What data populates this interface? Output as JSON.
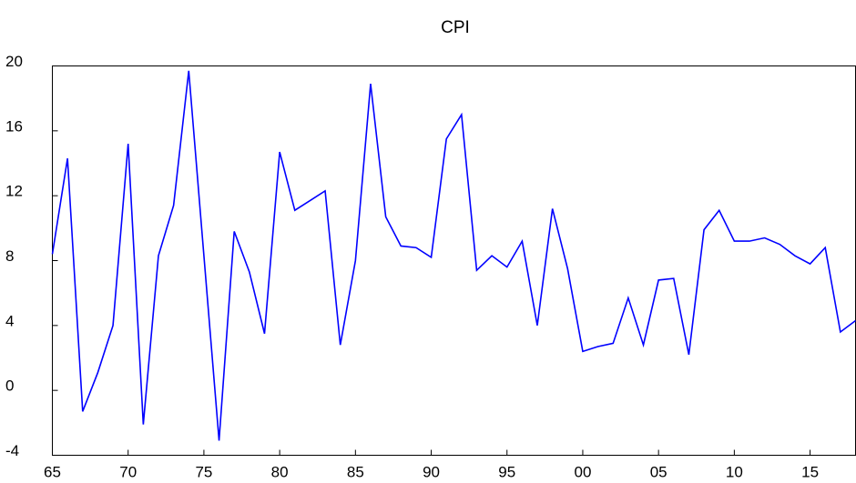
{
  "chart_data": {
    "type": "line",
    "title": "CPI",
    "x": [
      1965,
      1966,
      1967,
      1968,
      1969,
      1970,
      1971,
      1972,
      1973,
      1974,
      1975,
      1976,
      1977,
      1978,
      1979,
      1980,
      1981,
      1982,
      1983,
      1984,
      1985,
      1986,
      1987,
      1988,
      1989,
      1990,
      1991,
      1992,
      1993,
      1994,
      1995,
      1996,
      1997,
      1998,
      1999,
      2000,
      2001,
      2002,
      2003,
      2004,
      2005,
      2006,
      2007,
      2008,
      2009,
      2010,
      2011,
      2012,
      2013,
      2014,
      2015,
      2016,
      2017,
      2018
    ],
    "series": [
      {
        "name": "CPI",
        "color": "#0000ff",
        "values": [
          8.4,
          14.3,
          -1.3,
          1.1,
          4.0,
          15.2,
          -2.1,
          8.3,
          11.4,
          19.7,
          8.3,
          -3.1,
          9.8,
          7.3,
          3.5,
          14.7,
          11.1,
          11.7,
          12.3,
          2.8,
          8.0,
          18.9,
          10.7,
          8.9,
          8.8,
          8.2,
          15.5,
          17.0,
          7.4,
          8.3,
          7.6,
          9.2,
          4.0,
          11.2,
          7.5,
          2.4,
          2.7,
          2.9,
          5.7,
          2.8,
          6.8,
          6.9,
          2.2,
          9.9,
          11.1,
          9.2,
          9.2,
          9.4,
          9.0,
          8.3,
          7.8,
          8.8,
          3.6,
          4.3
        ]
      }
    ],
    "xlim": [
      1965,
      2018
    ],
    "xticks": [
      {
        "value": 1965,
        "label": "65"
      },
      {
        "value": 1970,
        "label": "70"
      },
      {
        "value": 1975,
        "label": "75"
      },
      {
        "value": 1980,
        "label": "80"
      },
      {
        "value": 1985,
        "label": "85"
      },
      {
        "value": 1990,
        "label": "90"
      },
      {
        "value": 1995,
        "label": "95"
      },
      {
        "value": 2000,
        "label": "00"
      },
      {
        "value": 2005,
        "label": "05"
      },
      {
        "value": 2010,
        "label": "10"
      },
      {
        "value": 2015,
        "label": "15"
      }
    ],
    "ylim": [
      -4,
      20
    ],
    "yticks": [
      -4,
      0,
      4,
      8,
      12,
      16,
      20
    ]
  }
}
